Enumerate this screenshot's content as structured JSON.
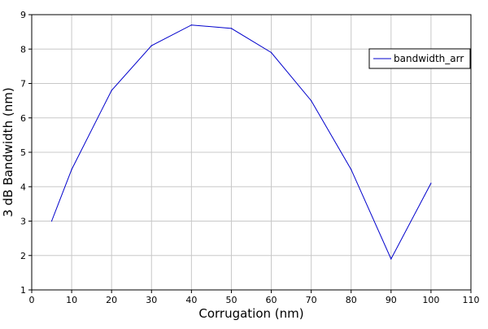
{
  "chart_data": {
    "type": "line",
    "title": "",
    "xlabel": "Corrugation (nm)",
    "ylabel": "3 dB Bandwidth (nm)",
    "xlim": [
      0,
      110
    ],
    "ylim": [
      1,
      9
    ],
    "xticks": [
      0,
      10,
      20,
      30,
      40,
      50,
      60,
      70,
      80,
      90,
      100,
      110
    ],
    "yticks": [
      1,
      2,
      3,
      4,
      5,
      6,
      7,
      8,
      9
    ],
    "grid": true,
    "legend_position": "top-right",
    "series": [
      {
        "name": "bandwidth_arr",
        "color": "#0000cc",
        "x": [
          5,
          10,
          20,
          30,
          40,
          50,
          60,
          70,
          80,
          90,
          100
        ],
        "y": [
          3.0,
          4.5,
          6.8,
          8.1,
          8.7,
          8.6,
          7.9,
          6.5,
          4.5,
          1.9,
          4.1
        ]
      }
    ]
  }
}
